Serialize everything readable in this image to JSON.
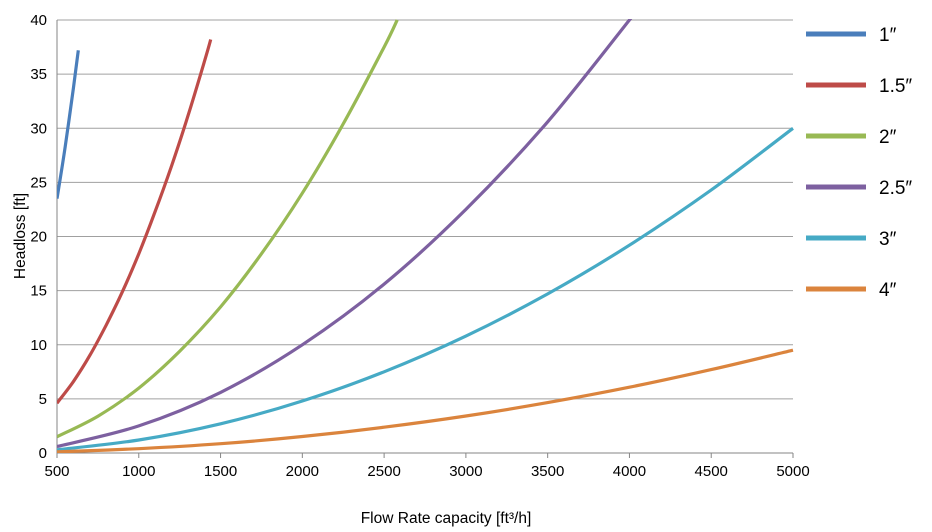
{
  "chart_data": {
    "type": "line",
    "title": "",
    "xlabel": "Flow Rate capacity [ft³/h]",
    "ylabel": "Headloss [ft]",
    "xlim": [
      500,
      5000
    ],
    "ylim": [
      0,
      40
    ],
    "x_ticks": [
      500,
      1000,
      1500,
      2000,
      2500,
      3000,
      3500,
      4000,
      4500,
      5000
    ],
    "y_ticks": [
      0,
      5,
      10,
      15,
      20,
      25,
      30,
      35,
      40
    ],
    "grid": "horizontal",
    "legend_position": "right",
    "series": [
      {
        "name": "1″",
        "color": "#4a7ebb",
        "x": [
          500,
          550,
          600,
          630
        ],
        "y": [
          23.5,
          28.3,
          33.7,
          37.2
        ]
      },
      {
        "name": "1.5″",
        "color": "#be4b48",
        "x": [
          500,
          600,
          700,
          800,
          900,
          1000,
          1100,
          1200,
          1300,
          1400,
          1440
        ],
        "y": [
          4.6,
          6.6,
          9.0,
          11.8,
          14.9,
          18.4,
          22.3,
          26.5,
          31.1,
          36.1,
          38.2
        ]
      },
      {
        "name": "2″",
        "color": "#98b954",
        "x": [
          500,
          750,
          1000,
          1250,
          1500,
          1750,
          2000,
          2250,
          2500,
          2580
        ],
        "y": [
          1.5,
          3.4,
          6.0,
          9.4,
          13.5,
          18.4,
          24.0,
          30.4,
          37.5,
          40.0
        ]
      },
      {
        "name": "2.5″",
        "color": "#7d60a0",
        "x": [
          500,
          1000,
          1500,
          2000,
          2500,
          3000,
          3500,
          4000,
          4050
        ],
        "y": [
          0.6,
          2.5,
          5.6,
          10.0,
          15.6,
          22.5,
          30.6,
          40.0,
          41.0
        ]
      },
      {
        "name": "3″",
        "color": "#46aac5",
        "x": [
          500,
          1000,
          1500,
          2000,
          2500,
          3000,
          3500,
          4000,
          4500,
          5000
        ],
        "y": [
          0.3,
          1.2,
          2.7,
          4.8,
          7.5,
          10.8,
          14.7,
          19.2,
          24.3,
          30.0
        ]
      },
      {
        "name": "4″",
        "color": "#db843d",
        "x": [
          500,
          1000,
          1500,
          2000,
          2500,
          3000,
          3500,
          4000,
          4500,
          5000
        ],
        "y": [
          0.1,
          0.4,
          0.86,
          1.52,
          2.38,
          3.42,
          4.66,
          6.08,
          7.7,
          9.5
        ]
      }
    ]
  }
}
